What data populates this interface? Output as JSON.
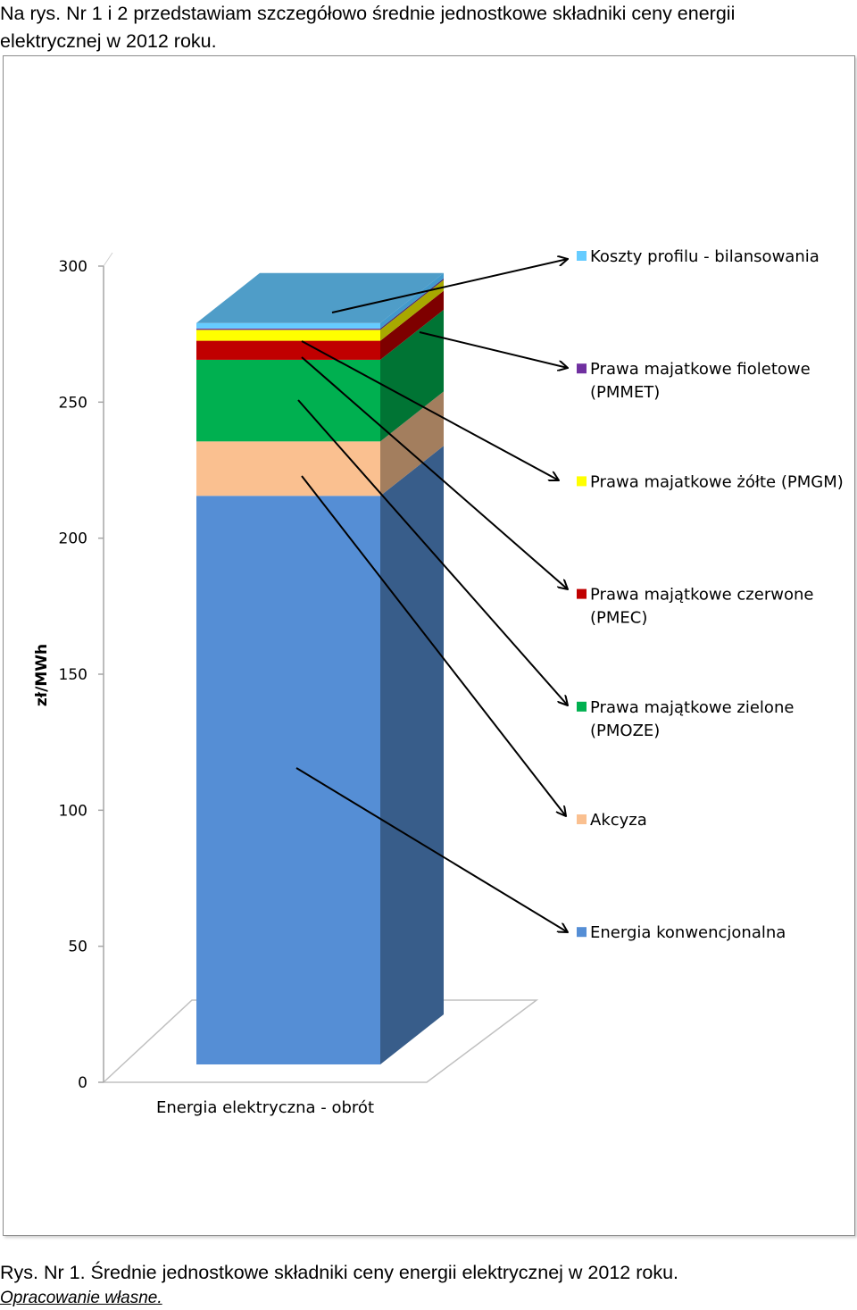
{
  "intro": {
    "line1": "Na rys. Nr 1 i 2 przedstawiam szczegółowo średnie jednostkowe składniki ceny energii",
    "line2": "elektrycznej w 2012 roku."
  },
  "caption": {
    "text": "Rys. Nr 1. Średnie jednostkowe składniki ceny energii elektrycznej w 2012 roku.",
    "source": "Opracowanie własne."
  },
  "chart_data": {
    "type": "bar",
    "stacked": true,
    "three_d": true,
    "title": "",
    "xlabel": "",
    "ylabel": "zł/MWh",
    "ylim": [
      0,
      300
    ],
    "yticks": [
      0,
      50,
      100,
      150,
      200,
      250,
      300
    ],
    "categories": [
      "Energia elektryczna - obrót"
    ],
    "series": [
      {
        "name": "Energia konwencjonalna",
        "values": [
          209
        ],
        "color": "#558ED5",
        "side": "#385D8A"
      },
      {
        "name": "Akcyza",
        "values": [
          20
        ],
        "color": "#FAC090",
        "side": "#A37E5E"
      },
      {
        "name": "Prawa majątkowe zielone (PMOZE)",
        "values": [
          30
        ],
        "color": "#00B050",
        "side": "#007434"
      },
      {
        "name": "Prawa majątkowe czerwone (PMEC)",
        "values": [
          7
        ],
        "color": "#C00000",
        "side": "#7E0000"
      },
      {
        "name": "Prawa majatkowe żółte (PMGM)",
        "values": [
          4
        ],
        "color": "#FFFF00",
        "side": "#A8A800"
      },
      {
        "name": "Prawa majatkowe fioletowe (PMMET)",
        "values": [
          0.5
        ],
        "color": "#7030A0",
        "side": "#4A1F6A"
      },
      {
        "name": "Koszty profilu - bilansowania",
        "values": [
          2
        ],
        "color": "#66CCFF",
        "side": "#439ACC"
      }
    ],
    "legend": {
      "position": "right",
      "order": [
        "Koszty profilu - bilansowania",
        "Prawa majatkowe fioletowe (PMMET)",
        "Prawa majatkowe żółte (PMGM)",
        "Prawa majątkowe czerwone (PMEC)",
        "Prawa majątkowe zielone (PMOZE)",
        "Akcyza",
        "Energia konwencjonalna"
      ],
      "entries": [
        {
          "lines": [
            "Koszty profilu - bilansowania"
          ],
          "color": "#66CCFF"
        },
        {
          "lines": [
            "Prawa majatkowe fioletowe",
            "(PMMET)"
          ],
          "color": "#7030A0"
        },
        {
          "lines": [
            "Prawa majatkowe żółte (PMGM)"
          ],
          "color": "#FFFF00"
        },
        {
          "lines": [
            "Prawa majątkowe czerwone",
            "(PMEC)"
          ],
          "color": "#C00000"
        },
        {
          "lines": [
            "Prawa majątkowe zielone",
            "(PMOZE)"
          ],
          "color": "#00B050"
        },
        {
          "lines": [
            "Akcyza"
          ],
          "color": "#FAC090"
        },
        {
          "lines": [
            "Energia konwencjonalna"
          ],
          "color": "#558ED5"
        }
      ]
    },
    "top_cap_color": "#4F9DC8",
    "floor_color": "#C0C0C0"
  }
}
